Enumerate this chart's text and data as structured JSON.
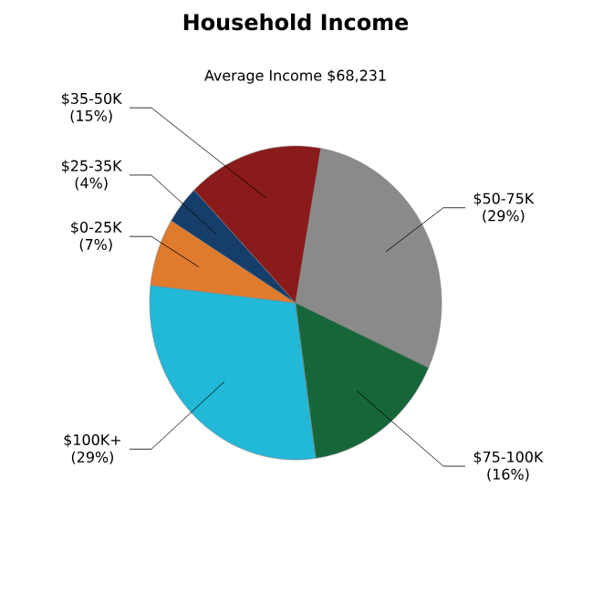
{
  "chart_data": {
    "type": "pie",
    "title": "Household Income",
    "subtitle": "Average Income  $68,231",
    "categories": [
      "$100K+",
      "$0-25K",
      "$25-35K",
      "$35-50K",
      "$50-75K",
      "$75-100K"
    ],
    "values": [
      29,
      7,
      4,
      15,
      29,
      16
    ],
    "value_labels": [
      "(29%)",
      "(7%)",
      "(4%)",
      "(15%)",
      "(29%)",
      "(16%)"
    ],
    "colors": [
      "#22b8d8",
      "#e07b2e",
      "#163e6a",
      "#8b1a1a",
      "#8a8a8a",
      "#17663a"
    ]
  }
}
